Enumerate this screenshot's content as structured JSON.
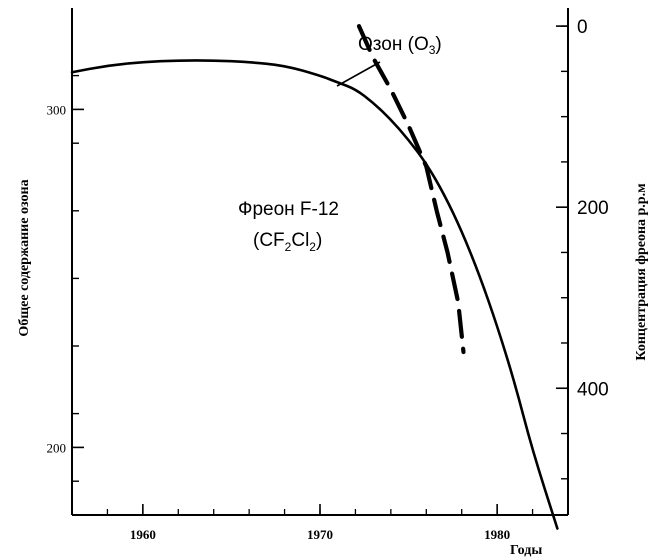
{
  "chart_data": {
    "type": "line",
    "xlabel": "Годы",
    "ylabel_left": "Общее содержание озона",
    "ylabel_right": "Концентрация фреона p.p.м",
    "xlim": [
      1956,
      1984
    ],
    "ylim_left": [
      180,
      330
    ],
    "ylim_right_inverted": [
      -20,
      540
    ],
    "x_ticks": [
      "1960",
      "1970",
      "1980"
    ],
    "y_ticks_left": [
      "300",
      "200"
    ],
    "y_ticks_right": [
      "0",
      "200",
      "400"
    ],
    "series": [
      {
        "name": "Озон (O3)",
        "axis": "left",
        "style": "solid",
        "x": [
          1956,
          1958,
          1960,
          1962,
          1964,
          1966,
          1968,
          1970,
          1971,
          1972,
          1973,
          1974,
          1975,
          1976,
          1977,
          1978,
          1979,
          1980,
          1981,
          1982,
          1983.4
        ],
        "y": [
          311,
          313,
          314,
          314.5,
          314.5,
          314,
          313,
          310,
          308,
          306,
          302,
          297,
          291,
          284,
          275,
          264,
          251,
          236,
          219,
          199,
          176
        ]
      },
      {
        "name": "Фреон F-12 (CF2Cl2)",
        "axis": "right",
        "style": "dashed",
        "x": [
          1972.2,
          1973,
          1974,
          1975,
          1976,
          1976.6,
          1977.2,
          1977.8,
          1978.1
        ],
        "y": [
          0,
          35,
          70,
          110,
          155,
          205,
          250,
          305,
          360
        ]
      }
    ],
    "annotations": [
      {
        "text_main": "Озон (O",
        "text_sub": "3",
        "text_end": ")",
        "points_to_x": 1972.3,
        "points_to_y": 305.5
      },
      {
        "line1": "Фреон F-12",
        "line2_parts": [
          "(CF",
          "2",
          "Cl",
          "2",
          ")"
        ]
      }
    ]
  }
}
